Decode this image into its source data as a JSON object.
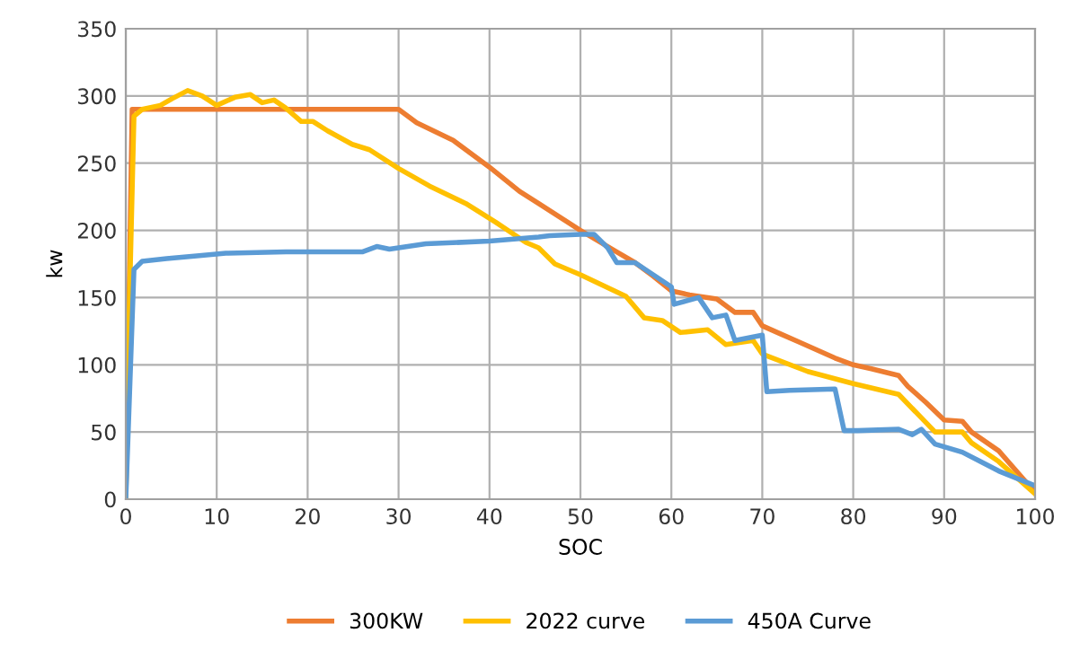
{
  "chart_data": {
    "type": "line",
    "xlabel": "SOC",
    "ylabel": "kw",
    "xlim": [
      0,
      100
    ],
    "ylim": [
      0,
      350
    ],
    "xticks": [
      0,
      10,
      20,
      30,
      40,
      50,
      60,
      70,
      80,
      90,
      100
    ],
    "yticks": [
      0,
      50,
      100,
      150,
      200,
      250,
      300,
      350
    ],
    "grid": true,
    "legend": "bottom",
    "marker": "none",
    "line_style": "solid",
    "series": [
      {
        "name": "300KW",
        "color": "#ed7d31",
        "x": [
          0,
          0.7,
          30,
          32,
          36,
          40,
          43.3,
          45.4,
          50,
          52,
          54,
          56,
          58,
          60,
          62,
          65,
          67,
          69,
          70,
          72,
          74,
          76,
          78,
          80,
          82,
          85,
          86,
          88,
          90,
          92,
          93,
          96,
          100
        ],
        "values": [
          0,
          290,
          290,
          280,
          267,
          247,
          229,
          220,
          200,
          192,
          184,
          176,
          166,
          155,
          152,
          149,
          139,
          139,
          129,
          123,
          117,
          111,
          105,
          100,
          97,
          92,
          84,
          72,
          59,
          58,
          50,
          36,
          5
        ]
      },
      {
        "name": "2022 curve",
        "color": "#ffc000",
        "x": [
          0,
          0.2,
          0.9,
          1.8,
          3.8,
          5.1,
          6.8,
          8.4,
          10,
          12,
          13.7,
          15,
          16.3,
          17.6,
          19.3,
          20.6,
          22.2,
          24.9,
          26.8,
          30,
          33.4,
          37.4,
          40.7,
          44,
          45.4,
          47.2,
          50,
          55,
          57,
          59,
          61,
          64,
          66,
          69,
          70,
          75,
          80,
          85,
          87,
          89,
          92,
          93,
          96,
          100
        ],
        "values": [
          0,
          90,
          285,
          290,
          293,
          298,
          304,
          300,
          293,
          299,
          301,
          295,
          297,
          291,
          281,
          281,
          274,
          264,
          260,
          246,
          233,
          220,
          206,
          191,
          187,
          175,
          167,
          151,
          135,
          133,
          124,
          126,
          115,
          118,
          108,
          95,
          86,
          78,
          64,
          50,
          50,
          42,
          28,
          4
        ]
      },
      {
        "name": "450A Curve",
        "color": "#5b9bd5",
        "x": [
          0,
          0.9,
          1.8,
          4.5,
          7.8,
          11,
          17.6,
          26,
          27.6,
          29,
          33,
          40,
          45.4,
          46.6,
          50,
          51.5,
          53,
          54,
          56,
          58,
          60,
          60.3,
          63,
          64.5,
          66,
          67,
          70,
          70.5,
          73,
          78,
          79,
          80.5,
          85,
          86.5,
          87.5,
          89,
          92,
          96,
          100
        ],
        "values": [
          0,
          171,
          177,
          179,
          181,
          183,
          184,
          184,
          188,
          186,
          190,
          192,
          195,
          196,
          197,
          197,
          187,
          176,
          176,
          167,
          158,
          145,
          150,
          135,
          137,
          118,
          122,
          80,
          81,
          82,
          51,
          51,
          52,
          48,
          52,
          41,
          35,
          21,
          10
        ]
      }
    ]
  }
}
